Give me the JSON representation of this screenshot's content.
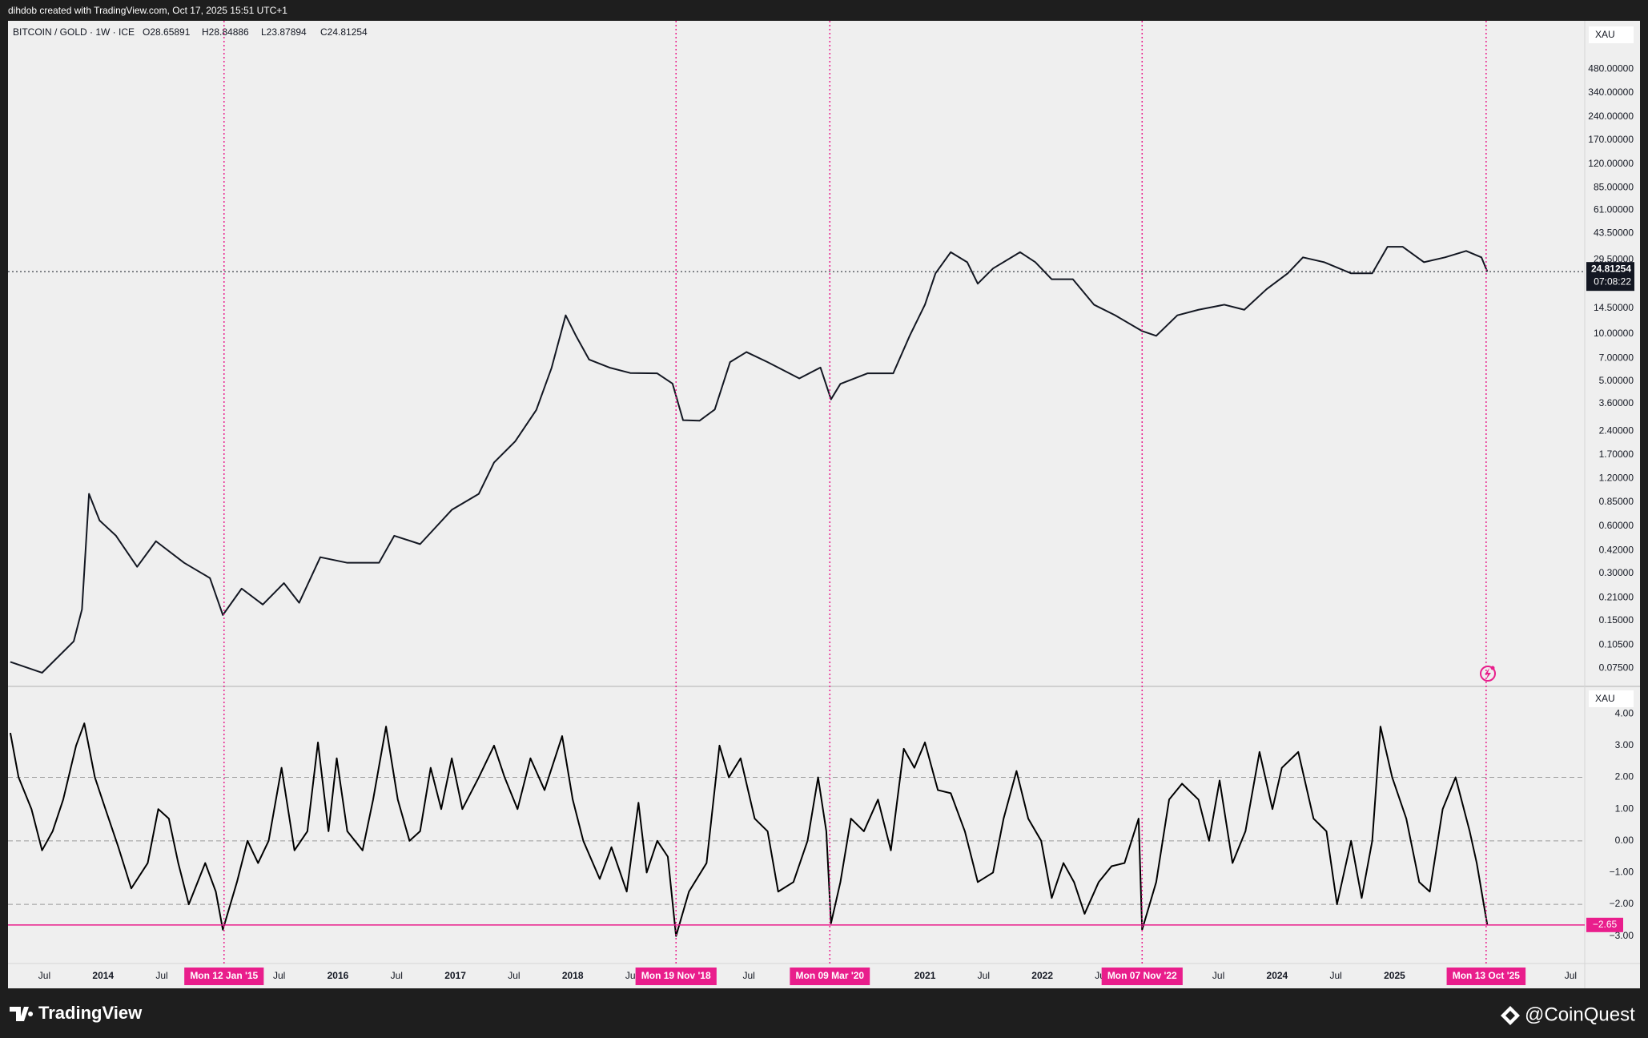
{
  "header": "dihdob created with TradingView.com, Oct 17, 2025 15:51 UTC+1",
  "footer": {
    "logo": "TradingView",
    "credit": "@CoinQuest"
  },
  "chart_data": [
    {
      "type": "line",
      "title": "BITCOIN / GOLD · 1W · ICE",
      "ohlc": [
        "O28.65891",
        "H28.84886",
        "L23.87894",
        "C24.81254"
      ],
      "axis_unit": "XAU",
      "log_scale": true,
      "grid": false,
      "xlim": [
        2013.19,
        2026.62
      ],
      "ylim": [
        0.0587,
        975
      ],
      "yticks": [
        {
          "value": 480,
          "label": "480.00000"
        },
        {
          "value": 340,
          "label": "340.00000"
        },
        {
          "value": 240,
          "label": "240.00000"
        },
        {
          "value": 170,
          "label": "170.00000"
        },
        {
          "value": 120,
          "label": "120.00000"
        },
        {
          "value": 85,
          "label": "85.00000"
        },
        {
          "value": 61,
          "label": "61.00000"
        },
        {
          "value": 43.5,
          "label": "43.50000"
        },
        {
          "value": 29.5,
          "label": "29.50000"
        },
        {
          "value": 14.5,
          "label": "14.50000"
        },
        {
          "value": 10,
          "label": "10.00000"
        },
        {
          "value": 7,
          "label": "7.00000"
        },
        {
          "value": 5,
          "label": "5.00000"
        },
        {
          "value": 3.6,
          "label": "3.60000"
        },
        {
          "value": 2.4,
          "label": "2.40000"
        },
        {
          "value": 1.7,
          "label": "1.70000"
        },
        {
          "value": 1.2,
          "label": "1.20000"
        },
        {
          "value": 0.85,
          "label": "0.85000"
        },
        {
          "value": 0.6,
          "label": "0.60000"
        },
        {
          "value": 0.42,
          "label": "0.42000"
        },
        {
          "value": 0.3,
          "label": "0.30000"
        },
        {
          "value": 0.21,
          "label": "0.21000"
        },
        {
          "value": 0.15,
          "label": "0.15000"
        },
        {
          "value": 0.105,
          "label": "0.10500"
        },
        {
          "value": 0.075,
          "label": "0.07500"
        }
      ],
      "last_value": 24.81254,
      "last_value_color": "#131722",
      "countdown": "07:08:22",
      "series": [
        {
          "name": "BITCOIN / GOLD",
          "color": "#131722",
          "x": [
            2013.21,
            2013.48,
            2013.75,
            2013.82,
            2013.88,
            2013.97,
            2014.11,
            2014.29,
            2014.45,
            2014.69,
            2014.91,
            2015.02,
            2015.18,
            2015.36,
            2015.54,
            2015.67,
            2015.85,
            2016.08,
            2016.35,
            2016.48,
            2016.7,
            2016.97,
            2017.2,
            2017.33,
            2017.51,
            2017.69,
            2017.82,
            2017.94,
            2018.03,
            2018.14,
            2018.32,
            2018.49,
            2018.72,
            2018.85,
            2018.94,
            2019.08,
            2019.21,
            2019.34,
            2019.48,
            2019.66,
            2019.93,
            2020.11,
            2020.2,
            2020.28,
            2020.51,
            2020.73,
            2020.87,
            2021.0,
            2021.09,
            2021.22,
            2021.36,
            2021.45,
            2021.58,
            2021.81,
            2021.94,
            2022.08,
            2022.26,
            2022.44,
            2022.62,
            2022.85,
            2022.97,
            2023.15,
            2023.33,
            2023.55,
            2023.72,
            2023.91,
            2024.09,
            2024.22,
            2024.4,
            2024.63,
            2024.81,
            2024.94,
            2025.07,
            2025.25,
            2025.43,
            2025.61,
            2025.74,
            2025.79
          ],
          "values": [
            0.082,
            0.07,
            0.111,
            0.177,
            0.96,
            0.65,
            0.52,
            0.33,
            0.48,
            0.35,
            0.28,
            0.163,
            0.24,
            0.19,
            0.26,
            0.195,
            0.38,
            0.35,
            0.35,
            0.52,
            0.46,
            0.76,
            0.96,
            1.52,
            2.07,
            3.28,
            6.07,
            13.1,
            9.63,
            6.85,
            6.07,
            5.63,
            5.6,
            4.82,
            2.82,
            2.8,
            3.3,
            6.6,
            7.65,
            6.6,
            5.2,
            6.1,
            3.83,
            4.8,
            5.6,
            5.6,
            9.7,
            15.3,
            24.2,
            33,
            28.5,
            20.8,
            26,
            33,
            28.5,
            22.2,
            22.2,
            15.3,
            13.1,
            10.4,
            9.7,
            13.1,
            14.2,
            15.3,
            14.2,
            19.2,
            24.2,
            30.6,
            28.5,
            24.2,
            24.2,
            35.7,
            35.7,
            28.5,
            30.6,
            33.6,
            30.6,
            24.81254
          ]
        }
      ]
    },
    {
      "type": "line",
      "axis_unit": "XAU",
      "log_scale": false,
      "grid": false,
      "xlim": [
        2013.19,
        2026.62
      ],
      "ylim": [
        -3.79,
        4.79
      ],
      "yticks": [
        {
          "value": 4,
          "label": "4.00"
        },
        {
          "value": 3,
          "label": "3.00"
        },
        {
          "value": 2,
          "label": "2.00"
        },
        {
          "value": 1,
          "label": "1.00"
        },
        {
          "value": 0,
          "label": "0.00"
        },
        {
          "value": -1,
          "label": "−1.00"
        },
        {
          "value": -2,
          "label": "−2.00"
        },
        {
          "value": -3,
          "label": "−3.00"
        }
      ],
      "levels": [
        2,
        0,
        -2
      ],
      "level_color": "#9a9a9a",
      "last_value": {
        "value": -2.65,
        "label": "−2.65"
      },
      "last_value_color": "#e91e8c",
      "xticks": [
        {
          "value": 2013.5,
          "label": "Jul"
        },
        2014,
        {
          "value": 2014.5,
          "label": "Jul"
        },
        {
          "value": 2015.5,
          "label": "Jul"
        },
        2016,
        {
          "value": 2016.5,
          "label": "Jul"
        },
        2017,
        {
          "value": 2017.5,
          "label": "Jul"
        },
        2018,
        {
          "value": 2018.5,
          "label": "Jul"
        },
        {
          "value": 2019.5,
          "label": "Jul"
        },
        2021,
        {
          "value": 2021.5,
          "label": "Jul"
        },
        2022,
        {
          "value": 2022.5,
          "label": "Jul"
        },
        {
          "value": 2023.5,
          "label": "Jul"
        },
        2024,
        {
          "value": 2024.5,
          "label": "Jul"
        },
        2025,
        {
          "value": 2026.5,
          "label": "Jul"
        }
      ],
      "markers": [
        {
          "value": 2015.03,
          "label": "Mon 12 Jan '15"
        },
        {
          "value": 2018.88,
          "label": "Mon 19 Nov '18"
        },
        {
          "value": 2020.19,
          "label": "Mon 09 Mar '20"
        },
        {
          "value": 2022.85,
          "label": "Mon 07 Nov '22"
        },
        {
          "value": 2025.78,
          "label": "Mon 13 Oct '25"
        }
      ],
      "marker_color": "#e91e8c",
      "series": [
        {
          "name": "Oscillator",
          "color": "#000000",
          "x": [
            2013.21,
            2013.28,
            2013.39,
            2013.48,
            2013.57,
            2013.66,
            2013.77,
            2013.84,
            2013.93,
            2014.02,
            2014.13,
            2014.24,
            2014.38,
            2014.47,
            2014.56,
            2014.64,
            2014.73,
            2014.87,
            2014.96,
            2015.02,
            2015.14,
            2015.23,
            2015.32,
            2015.41,
            2015.52,
            2015.63,
            2015.74,
            2015.83,
            2015.92,
            2015.99,
            2016.08,
            2016.21,
            2016.3,
            2016.41,
            2016.51,
            2016.61,
            2016.7,
            2016.79,
            2016.88,
            2016.97,
            2017.06,
            2017.2,
            2017.33,
            2017.42,
            2017.53,
            2017.64,
            2017.76,
            2017.91,
            2018.0,
            2018.09,
            2018.23,
            2018.33,
            2018.46,
            2018.56,
            2018.63,
            2018.72,
            2018.81,
            2018.88,
            2018.99,
            2019.14,
            2019.25,
            2019.33,
            2019.43,
            2019.55,
            2019.66,
            2019.75,
            2019.88,
            2020.0,
            2020.09,
            2020.16,
            2020.2,
            2020.28,
            2020.37,
            2020.48,
            2020.6,
            2020.71,
            2020.82,
            2020.91,
            2021.0,
            2021.11,
            2021.22,
            2021.34,
            2021.45,
            2021.58,
            2021.67,
            2021.78,
            2021.88,
            2021.99,
            2022.08,
            2022.18,
            2022.27,
            2022.36,
            2022.48,
            2022.59,
            2022.7,
            2022.82,
            2022.85,
            2022.97,
            2023.08,
            2023.19,
            2023.33,
            2023.42,
            2023.51,
            2023.62,
            2023.73,
            2023.85,
            2023.96,
            2024.04,
            2024.18,
            2024.31,
            2024.42,
            2024.51,
            2024.63,
            2024.72,
            2024.81,
            2024.88,
            2024.98,
            2025.1,
            2025.21,
            2025.3,
            2025.41,
            2025.52,
            2025.64,
            2025.7,
            2025.76,
            2025.79
          ],
          "values": [
            3.4,
            2.0,
            1.0,
            -0.3,
            0.3,
            1.3,
            3.0,
            3.7,
            2.0,
            1.0,
            -0.2,
            -1.5,
            -0.7,
            1.0,
            0.7,
            -0.7,
            -2.0,
            -0.7,
            -1.6,
            -2.8,
            -1.3,
            0.0,
            -0.7,
            0.0,
            2.3,
            -0.3,
            0.3,
            3.1,
            0.3,
            2.6,
            0.3,
            -0.3,
            1.3,
            3.6,
            1.3,
            0.0,
            0.3,
            2.3,
            1.0,
            2.6,
            1.0,
            2.0,
            3.0,
            2.0,
            1.0,
            2.6,
            1.6,
            3.3,
            1.3,
            0.0,
            -1.2,
            -0.2,
            -1.6,
            1.2,
            -1.0,
            0.0,
            -0.5,
            -3.0,
            -1.6,
            -0.7,
            3.0,
            2.0,
            2.6,
            0.7,
            0.3,
            -1.6,
            -1.3,
            0.0,
            2.0,
            0.3,
            -2.6,
            -1.3,
            0.7,
            0.3,
            1.3,
            -0.3,
            2.9,
            2.3,
            3.1,
            1.6,
            1.5,
            0.3,
            -1.3,
            -1.0,
            0.7,
            2.2,
            0.7,
            0.0,
            -1.8,
            -0.7,
            -1.3,
            -2.3,
            -1.3,
            -0.8,
            -0.7,
            0.7,
            -2.8,
            -1.3,
            1.3,
            1.8,
            1.3,
            0.0,
            1.9,
            -0.7,
            0.3,
            2.8,
            1.0,
            2.3,
            2.8,
            0.7,
            0.3,
            -2.0,
            0.0,
            -1.8,
            0.0,
            3.6,
            2.0,
            0.7,
            -1.3,
            -1.6,
            1.0,
            2.0,
            0.3,
            -0.7,
            -2.0,
            -2.65
          ]
        }
      ]
    }
  ]
}
